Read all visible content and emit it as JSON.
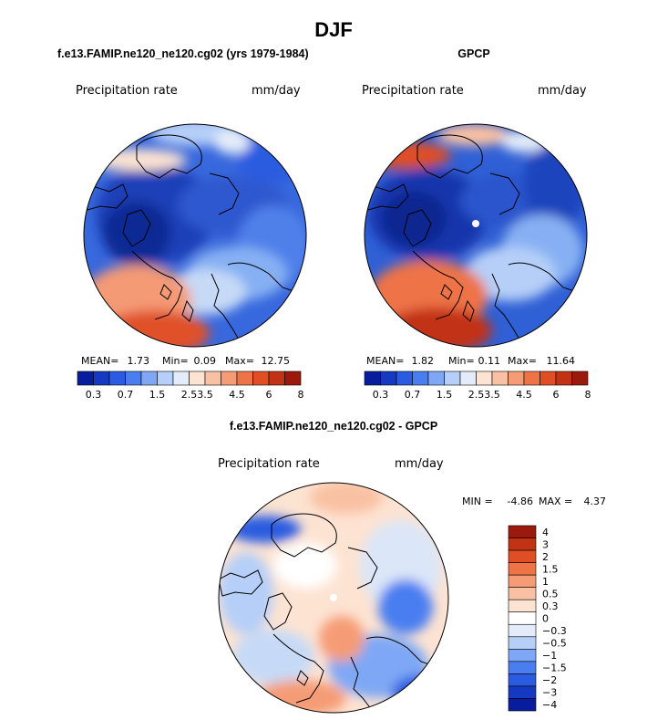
{
  "title": "DJF",
  "chart_data": [
    {
      "type": "heatmap",
      "projection": "north polar stereographic",
      "title": "f.e13.FAMIP.ne120_ne120.cg02 (yrs 1979-1984)",
      "left_label": "Precipitation rate",
      "right_label": "mm/day",
      "stats": {
        "mean_label": "MEAN=",
        "mean": "1.73",
        "min_label": "Min=",
        "min": "0.09",
        "max_label": "Max=",
        "max": "12.75"
      },
      "colorbar_ticks": [
        "0.3",
        "0.7",
        "1.5",
        "2.5",
        "3.5",
        "4.5",
        "6",
        "8"
      ],
      "colorbar_colors": [
        "#081d9e",
        "#1539c0",
        "#2a5be0",
        "#4a7ef0",
        "#7ea8f5",
        "#b5cff8",
        "#e4ecf9",
        "#fde3d2",
        "#f9c1a3",
        "#f59c76",
        "#ee7346",
        "#e04e25",
        "#c23214",
        "#9b1a0d"
      ]
    },
    {
      "type": "heatmap",
      "projection": "north polar stereographic",
      "title": "GPCP",
      "left_label": "Precipitation rate",
      "right_label": "mm/day",
      "stats": {
        "mean_label": "MEAN=",
        "mean": "1.82",
        "min_label": "Min=",
        "min": "0.11",
        "max_label": "Max=",
        "max": "11.64"
      },
      "colorbar_ticks": [
        "0.3",
        "0.7",
        "1.5",
        "2.5",
        "3.5",
        "4.5",
        "6",
        "8"
      ],
      "colorbar_colors": [
        "#081d9e",
        "#1539c0",
        "#2a5be0",
        "#4a7ef0",
        "#7ea8f5",
        "#b5cff8",
        "#e4ecf9",
        "#fde3d2",
        "#f9c1a3",
        "#f59c76",
        "#ee7346",
        "#e04e25",
        "#c23214",
        "#9b1a0d"
      ]
    },
    {
      "type": "heatmap",
      "projection": "north polar stereographic",
      "title": "f.e13.FAMIP.ne120_ne120.cg02 - GPCP",
      "left_label": "Precipitation rate",
      "right_label": "mm/day",
      "stats": {
        "min_label": "MIN =",
        "min": "-4.86",
        "max_label": "MAX =",
        "max": "4.37"
      },
      "colorbar_ticks": [
        "4",
        "3",
        "2",
        "1.5",
        "1",
        "0.5",
        "0.3",
        "0",
        "−0.3",
        "−0.5",
        "−1",
        "−1.5",
        "−2",
        "−3",
        "−4"
      ],
      "colorbar_colors": [
        "#9b1a0d",
        "#c23214",
        "#e04e25",
        "#ee7346",
        "#f59c76",
        "#f9c1a3",
        "#fde3d2",
        "#ffffff",
        "#e4ecf9",
        "#b5cff8",
        "#7ea8f5",
        "#4a7ef0",
        "#2a5be0",
        "#1539c0",
        "#081d9e"
      ]
    }
  ]
}
